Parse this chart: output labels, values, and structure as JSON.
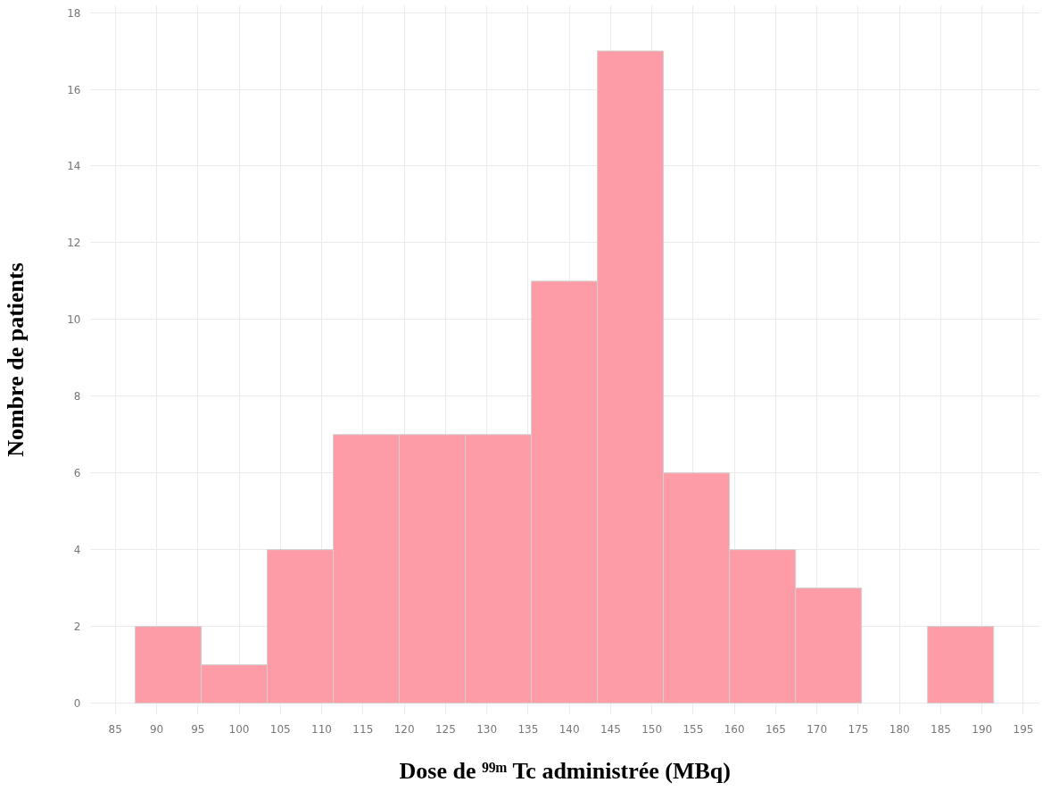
{
  "chart_data": {
    "type": "histogram",
    "xlabel": "Dose de ⁹⁹ᵐ Tc administrée (MBq)",
    "ylabel": "Nombre de patients",
    "bins": [
      87.4,
      95.4,
      103.4,
      111.4,
      119.4,
      127.4,
      135.4,
      143.4,
      151.4,
      159.4,
      167.4,
      175.4,
      183.4,
      191.4
    ],
    "values": [
      2,
      1,
      4,
      7,
      7,
      7,
      11,
      17,
      6,
      4,
      3,
      0,
      2
    ],
    "color": "#fd9ca7",
    "xlim": [
      82,
      197
    ],
    "xticks": [
      85,
      90,
      95,
      100,
      105,
      110,
      115,
      120,
      125,
      130,
      135,
      140,
      145,
      150,
      155,
      160,
      165,
      170,
      175,
      180,
      185,
      190,
      195
    ],
    "ylim": [
      -0.3,
      18.2
    ],
    "yticks": [
      0,
      2,
      4,
      6,
      8,
      10,
      12,
      14,
      16,
      18
    ],
    "grid": true
  }
}
